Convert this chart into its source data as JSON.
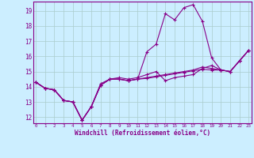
{
  "xlabel": "Windchill (Refroidissement éolien,°C)",
  "background_color": "#cceeff",
  "grid_color": "#aacccc",
  "line_color": "#880088",
  "x_ticks": [
    0,
    1,
    2,
    3,
    4,
    5,
    6,
    7,
    8,
    9,
    10,
    11,
    12,
    13,
    14,
    15,
    16,
    17,
    18,
    19,
    20,
    21,
    22,
    23
  ],
  "y_ticks": [
    12,
    13,
    14,
    15,
    16,
    17,
    18,
    19
  ],
  "xlim": [
    -0.3,
    23.3
  ],
  "ylim": [
    11.6,
    19.6
  ],
  "series": [
    [
      14.3,
      13.9,
      13.8,
      13.1,
      13.0,
      11.8,
      12.7,
      14.1,
      14.5,
      14.5,
      14.4,
      14.5,
      16.3,
      16.8,
      18.8,
      18.4,
      19.2,
      19.4,
      18.3,
      15.9,
      15.1,
      15.0,
      15.7,
      16.4
    ],
    [
      14.3,
      13.9,
      13.8,
      13.1,
      13.0,
      11.8,
      12.7,
      14.2,
      14.5,
      14.6,
      14.5,
      14.6,
      14.8,
      15.0,
      14.4,
      14.6,
      14.7,
      14.8,
      15.2,
      15.4,
      15.1,
      15.0,
      15.7,
      16.4
    ],
    [
      14.3,
      13.9,
      13.8,
      13.1,
      13.0,
      11.8,
      12.7,
      14.1,
      14.5,
      14.5,
      14.4,
      14.5,
      14.6,
      14.7,
      14.8,
      14.9,
      15.0,
      15.1,
      15.3,
      15.2,
      15.1,
      15.0,
      15.7,
      16.4
    ],
    [
      14.3,
      13.9,
      13.8,
      13.1,
      13.0,
      11.8,
      12.7,
      14.1,
      14.5,
      14.5,
      14.4,
      14.5,
      14.55,
      14.65,
      14.75,
      14.85,
      14.95,
      15.05,
      15.15,
      15.1,
      15.1,
      15.0,
      15.7,
      16.4
    ]
  ]
}
